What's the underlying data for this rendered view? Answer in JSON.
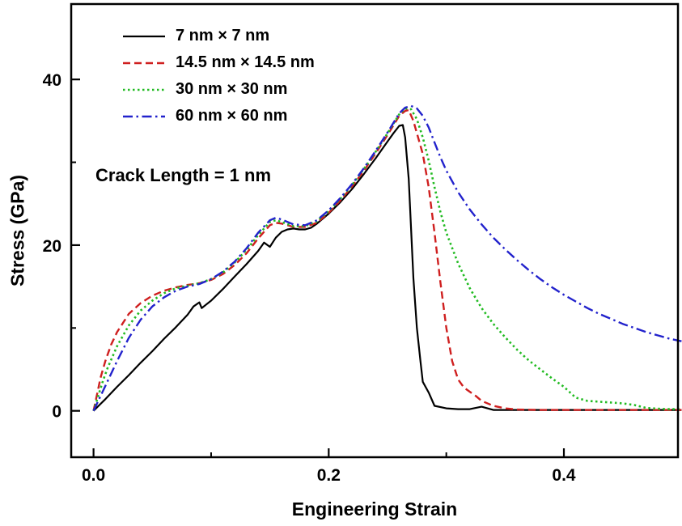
{
  "figure": {
    "annotation": "Crack Length = 1 nm"
  },
  "chart_data": {
    "type": "line",
    "title": "",
    "xlabel": "Engineering Strain",
    "ylabel": "Stress (GPa)",
    "xlim": [
      -0.019,
      0.497
    ],
    "ylim": [
      -5.6,
      49.1
    ],
    "grid": false,
    "legend_position": "top-left-inside",
    "axis_color": "#000000",
    "x_major_ticks": [
      {
        "value": 0.0,
        "label": "0.0"
      },
      {
        "value": 0.2,
        "label": "0.2"
      },
      {
        "value": 0.4,
        "label": "0.4"
      }
    ],
    "x_minor_ticks": [
      0.1,
      0.3
    ],
    "y_major_ticks": [
      {
        "value": 0,
        "label": "0"
      },
      {
        "value": 20,
        "label": "20"
      },
      {
        "value": 40,
        "label": "40"
      }
    ],
    "y_minor_ticks": [
      10,
      30
    ],
    "series": [
      {
        "name": "7 nm × 7 nm",
        "color": "#000000",
        "style": "solid",
        "dash": "",
        "width": 2.2,
        "points": [
          [
            0.0,
            0.0
          ],
          [
            0.005,
            0.7
          ],
          [
            0.01,
            1.4
          ],
          [
            0.02,
            2.9
          ],
          [
            0.03,
            4.3
          ],
          [
            0.04,
            5.8
          ],
          [
            0.05,
            7.2
          ],
          [
            0.06,
            8.7
          ],
          [
            0.07,
            10.1
          ],
          [
            0.08,
            11.6
          ],
          [
            0.085,
            12.6
          ],
          [
            0.09,
            13.1
          ],
          [
            0.092,
            12.4
          ],
          [
            0.1,
            13.3
          ],
          [
            0.11,
            14.7
          ],
          [
            0.12,
            16.2
          ],
          [
            0.13,
            17.7
          ],
          [
            0.14,
            19.3
          ],
          [
            0.145,
            20.3
          ],
          [
            0.15,
            19.8
          ],
          [
            0.155,
            20.9
          ],
          [
            0.16,
            21.6
          ],
          [
            0.165,
            21.9
          ],
          [
            0.17,
            22.0
          ],
          [
            0.175,
            21.9
          ],
          [
            0.18,
            21.9
          ],
          [
            0.185,
            22.1
          ],
          [
            0.19,
            22.6
          ],
          [
            0.2,
            23.8
          ],
          [
            0.21,
            25.2
          ],
          [
            0.22,
            26.8
          ],
          [
            0.23,
            28.6
          ],
          [
            0.24,
            30.5
          ],
          [
            0.25,
            32.5
          ],
          [
            0.255,
            33.5
          ],
          [
            0.26,
            34.4
          ],
          [
            0.263,
            34.5
          ],
          [
            0.265,
            33.0
          ],
          [
            0.268,
            28.0
          ],
          [
            0.27,
            22.0
          ],
          [
            0.272,
            16.0
          ],
          [
            0.275,
            10.0
          ],
          [
            0.278,
            6.0
          ],
          [
            0.28,
            3.5
          ],
          [
            0.285,
            2.2
          ],
          [
            0.29,
            0.6
          ],
          [
            0.3,
            0.3
          ],
          [
            0.31,
            0.2
          ],
          [
            0.32,
            0.2
          ],
          [
            0.33,
            0.5
          ],
          [
            0.335,
            0.3
          ],
          [
            0.34,
            0.1
          ],
          [
            0.36,
            0.1
          ],
          [
            0.4,
            0.1
          ],
          [
            0.45,
            0.1
          ],
          [
            0.5,
            0.1
          ]
        ]
      },
      {
        "name": "14.5 nm × 14.5 nm",
        "color": "#cf1f1f",
        "style": "dashed",
        "dash": "9,5",
        "width": 2.4,
        "points": [
          [
            0.0,
            0.0
          ],
          [
            0.003,
            2.0
          ],
          [
            0.006,
            4.0
          ],
          [
            0.01,
            6.0
          ],
          [
            0.015,
            8.0
          ],
          [
            0.02,
            9.5
          ],
          [
            0.03,
            11.7
          ],
          [
            0.04,
            13.0
          ],
          [
            0.05,
            13.9
          ],
          [
            0.06,
            14.5
          ],
          [
            0.07,
            14.9
          ],
          [
            0.08,
            15.2
          ],
          [
            0.09,
            15.4
          ],
          [
            0.1,
            15.8
          ],
          [
            0.11,
            16.5
          ],
          [
            0.12,
            17.6
          ],
          [
            0.13,
            19.0
          ],
          [
            0.14,
            20.8
          ],
          [
            0.15,
            22.4
          ],
          [
            0.155,
            22.7
          ],
          [
            0.16,
            22.6
          ],
          [
            0.17,
            22.2
          ],
          [
            0.18,
            22.2
          ],
          [
            0.19,
            22.7
          ],
          [
            0.2,
            23.9
          ],
          [
            0.21,
            25.4
          ],
          [
            0.22,
            27.1
          ],
          [
            0.23,
            29.0
          ],
          [
            0.24,
            31.1
          ],
          [
            0.25,
            33.3
          ],
          [
            0.26,
            35.6
          ],
          [
            0.265,
            36.2
          ],
          [
            0.268,
            36.3
          ],
          [
            0.272,
            35.0
          ],
          [
            0.28,
            31.0
          ],
          [
            0.285,
            27.0
          ],
          [
            0.29,
            21.5
          ],
          [
            0.295,
            15.5
          ],
          [
            0.3,
            10.0
          ],
          [
            0.305,
            6.0
          ],
          [
            0.31,
            3.8
          ],
          [
            0.315,
            2.8
          ],
          [
            0.32,
            2.3
          ],
          [
            0.325,
            1.8
          ],
          [
            0.33,
            1.2
          ],
          [
            0.34,
            0.6
          ],
          [
            0.35,
            0.3
          ],
          [
            0.36,
            0.15
          ],
          [
            0.38,
            0.1
          ],
          [
            0.4,
            0.1
          ],
          [
            0.45,
            0.1
          ],
          [
            0.5,
            0.1
          ]
        ]
      },
      {
        "name": "30 nm × 30 nm",
        "color": "#22bb22",
        "style": "dotted",
        "dash": "2.5,3.5",
        "width": 2.6,
        "points": [
          [
            0.0,
            0.0
          ],
          [
            0.004,
            1.8
          ],
          [
            0.008,
            3.6
          ],
          [
            0.012,
            5.2
          ],
          [
            0.02,
            7.8
          ],
          [
            0.03,
            10.3
          ],
          [
            0.04,
            12.1
          ],
          [
            0.05,
            13.3
          ],
          [
            0.06,
            14.2
          ],
          [
            0.07,
            14.8
          ],
          [
            0.08,
            15.1
          ],
          [
            0.09,
            15.4
          ],
          [
            0.1,
            15.9
          ],
          [
            0.11,
            16.7
          ],
          [
            0.12,
            17.9
          ],
          [
            0.13,
            19.4
          ],
          [
            0.14,
            21.2
          ],
          [
            0.15,
            22.8
          ],
          [
            0.155,
            23.0
          ],
          [
            0.16,
            22.8
          ],
          [
            0.17,
            22.3
          ],
          [
            0.18,
            22.3
          ],
          [
            0.19,
            22.9
          ],
          [
            0.2,
            24.1
          ],
          [
            0.21,
            25.6
          ],
          [
            0.22,
            27.3
          ],
          [
            0.23,
            29.2
          ],
          [
            0.24,
            31.3
          ],
          [
            0.25,
            33.5
          ],
          [
            0.26,
            35.8
          ],
          [
            0.265,
            36.5
          ],
          [
            0.27,
            36.4
          ],
          [
            0.275,
            35.2
          ],
          [
            0.28,
            33.0
          ],
          [
            0.285,
            30.2
          ],
          [
            0.29,
            27.0
          ],
          [
            0.295,
            24.0
          ],
          [
            0.3,
            21.5
          ],
          [
            0.31,
            17.8
          ],
          [
            0.32,
            14.8
          ],
          [
            0.33,
            12.4
          ],
          [
            0.34,
            10.5
          ],
          [
            0.35,
            8.9
          ],
          [
            0.36,
            7.4
          ],
          [
            0.37,
            6.1
          ],
          [
            0.38,
            5.0
          ],
          [
            0.39,
            3.9
          ],
          [
            0.4,
            2.9
          ],
          [
            0.41,
            1.6
          ],
          [
            0.42,
            1.2
          ],
          [
            0.43,
            1.1
          ],
          [
            0.44,
            1.0
          ],
          [
            0.45,
            0.9
          ],
          [
            0.46,
            0.7
          ],
          [
            0.47,
            0.35
          ],
          [
            0.48,
            0.25
          ],
          [
            0.49,
            0.2
          ],
          [
            0.5,
            0.2
          ]
        ]
      },
      {
        "name": "60 nm × 60 nm",
        "color": "#2222cc",
        "style": "dash-dot",
        "dash": "12,4.5,2.5,4.5",
        "width": 2.4,
        "points": [
          [
            0.0,
            0.0
          ],
          [
            0.005,
            1.5
          ],
          [
            0.01,
            3.0
          ],
          [
            0.02,
            6.0
          ],
          [
            0.03,
            8.8
          ],
          [
            0.04,
            11.0
          ],
          [
            0.05,
            12.6
          ],
          [
            0.06,
            13.7
          ],
          [
            0.07,
            14.5
          ],
          [
            0.08,
            15.0
          ],
          [
            0.09,
            15.3
          ],
          [
            0.1,
            15.9
          ],
          [
            0.11,
            16.8
          ],
          [
            0.12,
            18.0
          ],
          [
            0.13,
            19.6
          ],
          [
            0.14,
            21.5
          ],
          [
            0.15,
            23.0
          ],
          [
            0.155,
            23.3
          ],
          [
            0.16,
            23.1
          ],
          [
            0.17,
            22.5
          ],
          [
            0.18,
            22.4
          ],
          [
            0.19,
            23.0
          ],
          [
            0.2,
            24.2
          ],
          [
            0.21,
            25.7
          ],
          [
            0.22,
            27.4
          ],
          [
            0.23,
            29.3
          ],
          [
            0.24,
            31.4
          ],
          [
            0.25,
            33.6
          ],
          [
            0.26,
            35.9
          ],
          [
            0.265,
            36.6
          ],
          [
            0.27,
            36.8
          ],
          [
            0.275,
            36.5
          ],
          [
            0.28,
            35.6
          ],
          [
            0.285,
            34.2
          ],
          [
            0.29,
            32.4
          ],
          [
            0.295,
            30.6
          ],
          [
            0.3,
            29.0
          ],
          [
            0.31,
            26.4
          ],
          [
            0.32,
            24.3
          ],
          [
            0.33,
            22.5
          ],
          [
            0.34,
            20.9
          ],
          [
            0.35,
            19.5
          ],
          [
            0.36,
            18.2
          ],
          [
            0.37,
            17.0
          ],
          [
            0.38,
            15.9
          ],
          [
            0.39,
            14.9
          ],
          [
            0.4,
            14.0
          ],
          [
            0.41,
            13.2
          ],
          [
            0.42,
            12.4
          ],
          [
            0.43,
            11.7
          ],
          [
            0.44,
            11.1
          ],
          [
            0.45,
            10.5
          ],
          [
            0.46,
            10.0
          ],
          [
            0.47,
            9.5
          ],
          [
            0.48,
            9.1
          ],
          [
            0.49,
            8.7
          ],
          [
            0.5,
            8.4
          ]
        ]
      }
    ]
  }
}
